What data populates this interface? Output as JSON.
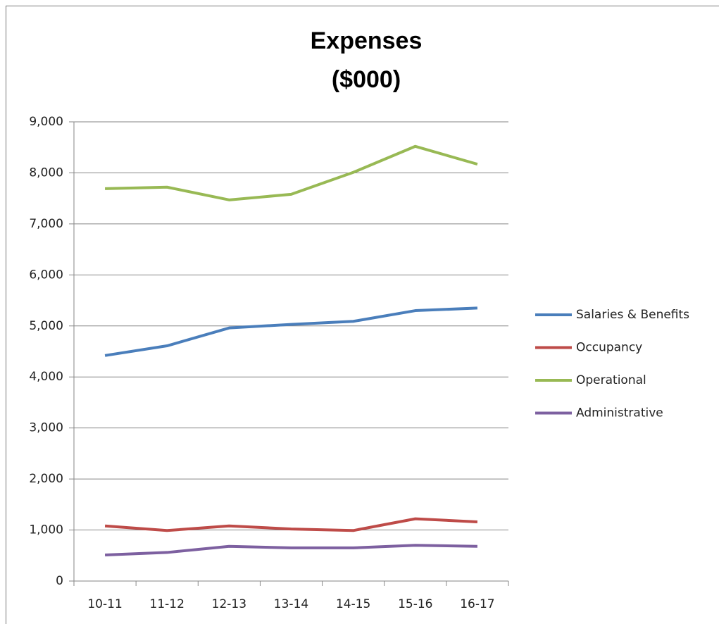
{
  "chart_data": {
    "type": "line",
    "title": "Expenses",
    "subtitle": "($000)",
    "categories": [
      "10-11",
      "11-12",
      "12-13",
      "13-14",
      "14-15",
      "15-16",
      "16-17"
    ],
    "series": [
      {
        "name": "Salaries & Benefits",
        "color": "#4a7ebb",
        "values": [
          4420,
          4610,
          4960,
          5030,
          5090,
          5300,
          5350
        ]
      },
      {
        "name": "Occupancy",
        "color": "#be4b48",
        "values": [
          1080,
          990,
          1080,
          1020,
          990,
          1220,
          1160
        ]
      },
      {
        "name": "Operational",
        "color": "#98b954",
        "values": [
          7690,
          7720,
          7470,
          7580,
          8010,
          8520,
          8170
        ]
      },
      {
        "name": "Administrative",
        "color": "#7d60a0",
        "values": [
          510,
          560,
          680,
          650,
          650,
          700,
          680
        ]
      }
    ],
    "ylim": [
      0,
      9000
    ],
    "yticks": [
      0,
      {
        "value": 1000,
        "label": "1,000"
      },
      {
        "value": 2000,
        "label": "2,000"
      },
      {
        "value": 3000,
        "label": "3,000"
      },
      {
        "value": 4000,
        "label": "4,000"
      },
      {
        "value": 5000,
        "label": "5,000"
      },
      {
        "value": 6000,
        "label": "6,000"
      },
      {
        "value": 7000,
        "label": "7,000"
      },
      {
        "value": 8000,
        "label": "8,000"
      },
      {
        "value": 9000,
        "label": "9,000"
      }
    ],
    "grid": true,
    "legend": "right"
  }
}
